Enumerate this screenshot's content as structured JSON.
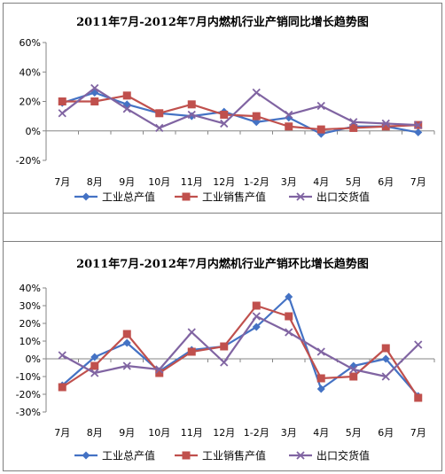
{
  "chart_data": [
    {
      "type": "line",
      "title": "2011年7月-2012年7月内燃机行业产销同比增长趋势图",
      "categories": [
        "7月",
        "8月",
        "9月",
        "10月",
        "11月",
        "12月",
        "1-2月",
        "3月",
        "4月",
        "5月",
        "6月",
        "7月"
      ],
      "yticks": [
        "60%",
        "40%",
        "20%",
        "0%",
        "-20%"
      ],
      "ylim": [
        -20,
        60
      ],
      "grid": false,
      "legend_position": "bottom",
      "series": [
        {
          "name": "工业总产值",
          "color": "#4472c4",
          "marker": "diamond",
          "values": [
            19,
            26,
            18,
            12,
            10,
            13,
            6,
            9,
            -2,
            3,
            3,
            -1
          ]
        },
        {
          "name": "工业销售产值",
          "color": "#c0504d",
          "marker": "square",
          "values": [
            20,
            20,
            24,
            12,
            18,
            11,
            10,
            3,
            1,
            2,
            3,
            4
          ]
        },
        {
          "name": "出口交货值",
          "color": "#8064a2",
          "marker": "x",
          "values": [
            12,
            29,
            15,
            2,
            11,
            5,
            26,
            11,
            17,
            6,
            5,
            4
          ]
        }
      ]
    },
    {
      "type": "line",
      "title": "2011年7月-2012年7月内燃机行业产销环比增长趋势图",
      "categories": [
        "7月",
        "8月",
        "9月",
        "10月",
        "11月",
        "12月",
        "1-2月",
        "3月",
        "4月",
        "5月",
        "6月",
        "7月"
      ],
      "yticks": [
        "40%",
        "30%",
        "20%",
        "10%",
        "0%",
        "-10%",
        "-20%",
        "-30%"
      ],
      "ylim": [
        -30,
        40
      ],
      "grid": false,
      "legend_position": "bottom",
      "series": [
        {
          "name": "工业总产值",
          "color": "#4472c4",
          "marker": "diamond",
          "values": [
            -15,
            1,
            9,
            -7,
            5,
            7,
            18,
            35,
            -17,
            -4,
            0,
            -21
          ]
        },
        {
          "name": "工业销售产值",
          "color": "#c0504d",
          "marker": "square",
          "values": [
            -16,
            -4,
            14,
            -8,
            4,
            7,
            30,
            24,
            -11,
            -10,
            6,
            -22
          ]
        },
        {
          "name": "出口交货值",
          "color": "#8064a2",
          "marker": "x",
          "values": [
            2,
            -8,
            -4,
            -6,
            15,
            -2,
            24,
            15,
            4,
            -6,
            -10,
            8
          ]
        }
      ]
    }
  ]
}
